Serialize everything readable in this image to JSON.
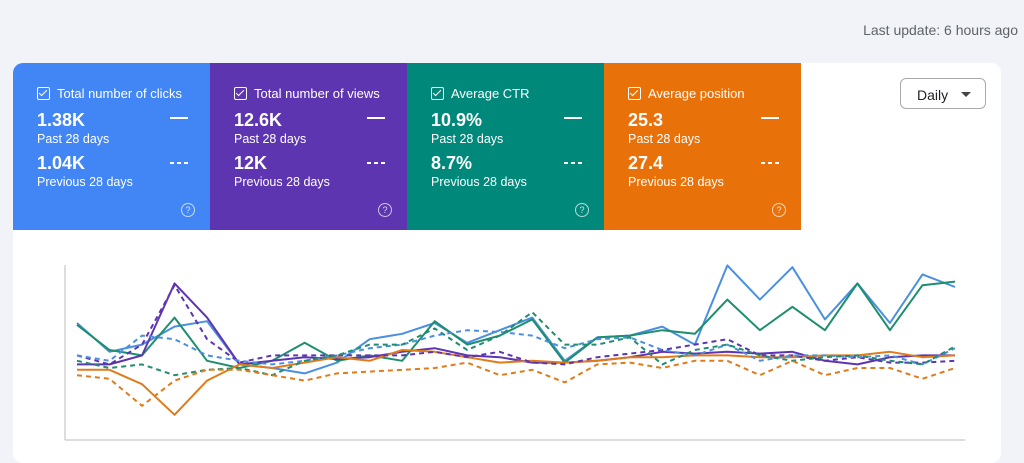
{
  "header": {
    "last_update": "Last update: 6 hours ago"
  },
  "controls": {
    "period": "Daily"
  },
  "metrics": [
    {
      "label": "Total number of clicks",
      "current": "1.38K",
      "current_period": "Past 28 days",
      "previous": "1.04K",
      "previous_period": "Previous 28 days",
      "color": "#4285f4"
    },
    {
      "label": "Total number of views",
      "current": "12.6K",
      "current_period": "Past 28 days",
      "previous": "12K",
      "previous_period": "Previous 28 days",
      "color": "#5e35b1"
    },
    {
      "label": "Average CTR",
      "current": "10.9%",
      "current_period": "Past 28 days",
      "previous": "8.7%",
      "previous_period": "Previous 28 days",
      "color": "#00897b"
    },
    {
      "label": "Average position",
      "current": "25.3",
      "current_period": "Past 28 days",
      "previous": "27.4",
      "previous_period": "Previous 28 days",
      "color": "#e8710a"
    }
  ],
  "chart_data": {
    "type": "line",
    "ylim": [
      0,
      100
    ],
    "series": [
      {
        "color": "#4a8fe0",
        "style": "solid",
        "values": [
          65,
          49,
          53,
          63,
          66,
          42,
          40,
          37,
          43,
          56,
          59,
          65,
          54,
          61,
          68,
          44,
          57,
          58,
          63,
          53,
          97,
          78,
          96,
          67,
          87,
          65,
          92,
          85
        ]
      },
      {
        "color": "#1e8e6e",
        "style": "solid",
        "values": [
          64,
          50,
          47,
          68,
          44,
          40,
          44,
          54,
          44,
          47,
          44,
          66,
          53,
          58,
          67,
          43,
          57,
          58,
          61,
          59,
          78,
          61,
          74,
          61,
          87,
          61,
          86,
          88
        ]
      },
      {
        "color": "#5e35b1",
        "style": "solid",
        "values": [
          42,
          42,
          47,
          87,
          68,
          42,
          44,
          46,
          45,
          46,
          49,
          51,
          47,
          46,
          43,
          43,
          44,
          46,
          49,
          48,
          49,
          48,
          49,
          44,
          42,
          46,
          47,
          47
        ]
      },
      {
        "color": "#e07b1a",
        "style": "solid",
        "values": [
          39,
          39,
          31,
          14,
          33,
          42,
          40,
          43,
          46,
          44,
          50,
          49,
          46,
          43,
          44,
          43,
          44,
          46,
          46,
          47,
          47,
          46,
          46,
          47,
          47,
          49,
          46,
          47
        ]
      },
      {
        "color": "#5e35b1",
        "style": "dashed",
        "values": [
          47,
          42,
          53,
          86,
          56,
          43,
          47,
          47,
          47,
          47,
          47,
          49,
          46,
          49,
          43,
          42,
          46,
          48,
          50,
          53,
          56,
          47,
          47,
          44,
          46,
          43,
          43,
          44
        ]
      },
      {
        "color": "#4a8fe0",
        "style": "dashed",
        "values": [
          47,
          44,
          58,
          56,
          47,
          44,
          42,
          44,
          47,
          51,
          53,
          58,
          61,
          60,
          58,
          51,
          56,
          57,
          50,
          47,
          53,
          44,
          47,
          47,
          46,
          47,
          42,
          51
        ]
      },
      {
        "color": "#1e8e6e",
        "style": "dashed",
        "values": [
          44,
          40,
          42,
          36,
          39,
          40,
          36,
          44,
          47,
          53,
          53,
          62,
          50,
          58,
          71,
          53,
          53,
          57,
          42,
          50,
          53,
          47,
          44,
          46,
          47,
          44,
          42,
          52
        ]
      },
      {
        "color": "#e07b1a",
        "style": "dashed",
        "values": [
          36,
          34,
          19,
          33,
          39,
          39,
          36,
          33,
          37,
          38,
          39,
          40,
          43,
          36,
          39,
          32,
          42,
          43,
          40,
          44,
          44,
          36,
          44,
          36,
          40,
          40,
          34,
          40
        ]
      }
    ]
  }
}
